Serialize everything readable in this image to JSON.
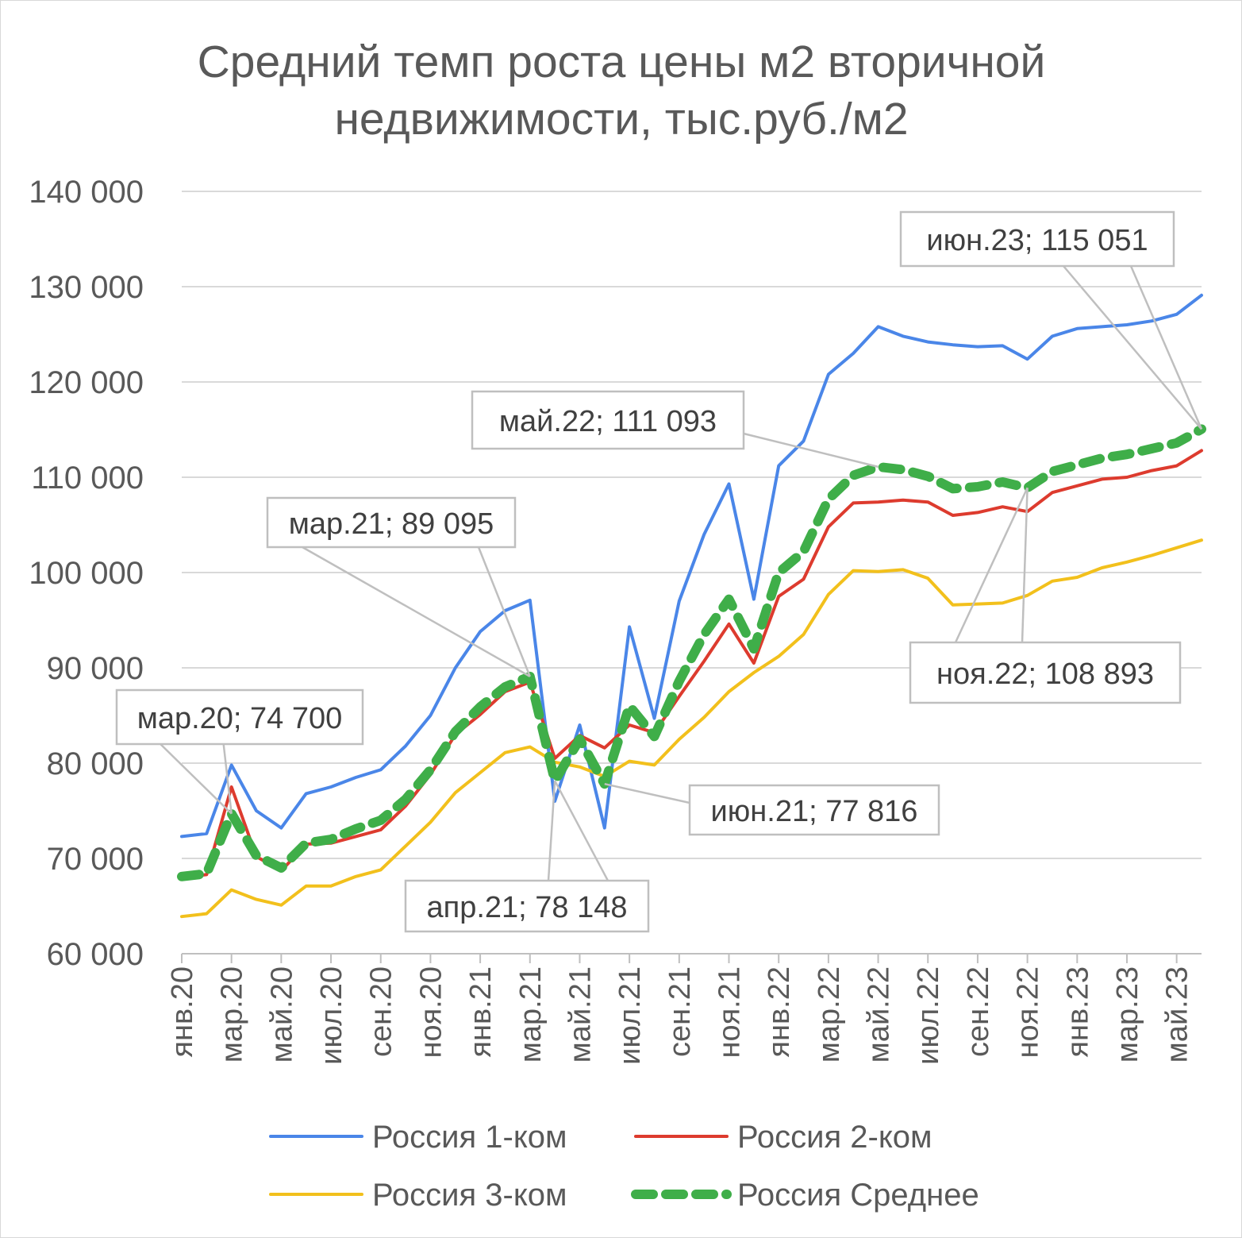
{
  "chart_data": {
    "type": "line",
    "title_lines": [
      "Средний темп роста цены м2 вторичной",
      "недвижимости, тыс.руб./м2"
    ],
    "ylim": [
      60000,
      140000
    ],
    "y_ticks": [
      {
        "value": 60000,
        "label": "60 000"
      },
      {
        "value": 70000,
        "label": "70 000"
      },
      {
        "value": 80000,
        "label": "80 000"
      },
      {
        "value": 90000,
        "label": "90 000"
      },
      {
        "value": 100000,
        "label": "100 000"
      },
      {
        "value": 110000,
        "label": "110 000"
      },
      {
        "value": 120000,
        "label": "120 000"
      },
      {
        "value": 130000,
        "label": "130 000"
      },
      {
        "value": 140000,
        "label": "140 000"
      }
    ],
    "grid": true,
    "x_tick_labels": [
      {
        "index": 0,
        "label": "янв.20"
      },
      {
        "index": 2,
        "label": "мар.20"
      },
      {
        "index": 4,
        "label": "май.20"
      },
      {
        "index": 6,
        "label": "июл.20"
      },
      {
        "index": 8,
        "label": "сен.20"
      },
      {
        "index": 10,
        "label": "ноя.20"
      },
      {
        "index": 12,
        "label": "янв.21"
      },
      {
        "index": 14,
        "label": "мар.21"
      },
      {
        "index": 16,
        "label": "май.21"
      },
      {
        "index": 18,
        "label": "июл.21"
      },
      {
        "index": 20,
        "label": "сен.21"
      },
      {
        "index": 22,
        "label": "ноя.21"
      },
      {
        "index": 24,
        "label": "янв.22"
      },
      {
        "index": 26,
        "label": "мар.22"
      },
      {
        "index": 28,
        "label": "май.22"
      },
      {
        "index": 30,
        "label": "июл.22"
      },
      {
        "index": 32,
        "label": "сен.22"
      },
      {
        "index": 34,
        "label": "ноя.22"
      },
      {
        "index": 36,
        "label": "янв.23"
      },
      {
        "index": 38,
        "label": "мар.23"
      },
      {
        "index": 40,
        "label": "май.23"
      }
    ],
    "series": [
      {
        "name": "Россия 1-ком",
        "color": "#4a86e8",
        "dashed": false,
        "values": [
          72300,
          72600,
          79800,
          75000,
          73200,
          76800,
          77500,
          78500,
          79300,
          81800,
          85000,
          90000,
          93800,
          96000,
          97100,
          76000,
          84000,
          73200,
          94300,
          84700,
          97000,
          104000,
          109300,
          97200,
          111200,
          113800,
          120800,
          123000,
          125800,
          124800,
          124200,
          123900,
          123700,
          123800,
          122400,
          124800,
          125600,
          125800,
          126000,
          126400,
          127100,
          129100
        ]
      },
      {
        "name": "Россия 2-ком",
        "color": "#dd3b2e",
        "dashed": false,
        "values": [
          68000,
          68300,
          77500,
          70200,
          68700,
          71500,
          71600,
          72300,
          73000,
          75500,
          78800,
          83000,
          85100,
          87500,
          88500,
          80500,
          82900,
          81600,
          84000,
          83200,
          87000,
          90700,
          94600,
          90500,
          97500,
          99300,
          104800,
          107300,
          107400,
          107600,
          107400,
          106000,
          106300,
          106900,
          106400,
          108400,
          109100,
          109800,
          110000,
          110700,
          111200,
          112800
        ]
      },
      {
        "name": "Россия 3-ком",
        "color": "#f2c01c",
        "dashed": false,
        "values": [
          63900,
          64200,
          66700,
          65700,
          65100,
          67100,
          67100,
          68100,
          68800,
          71300,
          73800,
          76900,
          79000,
          81100,
          81700,
          80100,
          79600,
          78600,
          80200,
          79800,
          82500,
          84800,
          87500,
          89500,
          91200,
          93500,
          97700,
          100200,
          100100,
          100300,
          99400,
          96600,
          96700,
          96800,
          97600,
          99100,
          99500,
          100500,
          101100,
          101800,
          102600,
          103400
        ]
      },
      {
        "name": "Россия Среднее",
        "color": "#3fae49",
        "dashed": true,
        "values": [
          68100,
          68400,
          74700,
          70300,
          69000,
          71600,
          72000,
          73100,
          74000,
          76200,
          79300,
          83300,
          85900,
          88000,
          89095,
          78148,
          82500,
          77816,
          86000,
          82800,
          88600,
          93500,
          97200,
          92000,
          100000,
          102200,
          107700,
          110200,
          111093,
          110800,
          110100,
          108800,
          109000,
          109500,
          108893,
          110600,
          111300,
          112000,
          112400,
          113000,
          113600,
          115051
        ]
      }
    ],
    "annotations": [
      {
        "label": "мар.20; 74 700"
      },
      {
        "label": "мар.21; 89 095"
      },
      {
        "label": "апр.21; 78 148"
      },
      {
        "label": "июн.21; 77 816"
      },
      {
        "label": "май.22; 111 093"
      },
      {
        "label": "ноя.22; 108 893"
      },
      {
        "label": "июн.23; 115 051"
      }
    ],
    "legend_position": "bottom"
  }
}
